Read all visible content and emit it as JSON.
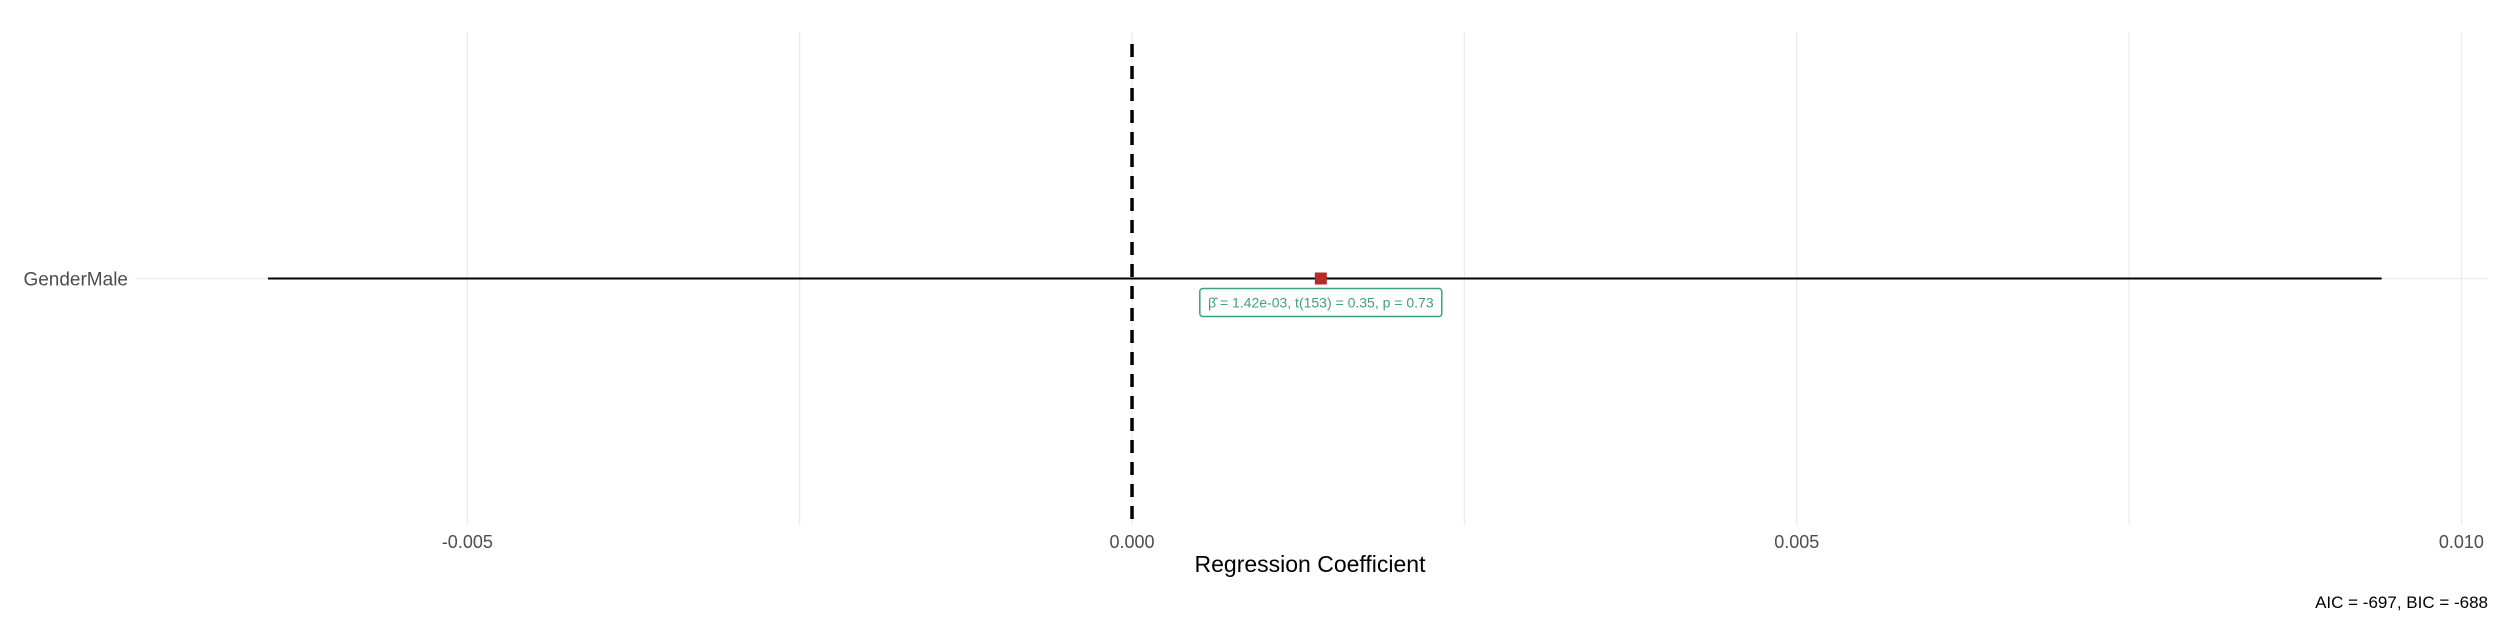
{
  "chart_data": {
    "type": "scatter",
    "chart_kind": "coefficient-plot",
    "categories": [
      "GenderMale"
    ],
    "estimates": [
      {
        "term": "GenderMale",
        "estimate": 0.00142,
        "conf_low": -0.0065,
        "conf_high": 0.0094
      }
    ],
    "annotation": "β̂ = 1.42e-03, t(153) = 0.35, p = 0.73",
    "reference_line": 0,
    "xlabel": "Regression Coefficient",
    "ylabel": "",
    "xlim": [
      -0.0075,
      0.0102
    ],
    "xticks": [
      -0.005,
      0.0,
      0.005,
      0.01
    ],
    "xtick_labels": [
      "-0.005",
      "0.000",
      "0.005",
      "0.010"
    ],
    "caption": "AIC = -697, BIC = -688",
    "grid": true,
    "legend": "none",
    "colors": {
      "point": "#b52a2a",
      "annotation": "#3f9f7f",
      "grid": "#ebebeb",
      "zero_line": "#000000",
      "ci_line": "#000000"
    }
  }
}
